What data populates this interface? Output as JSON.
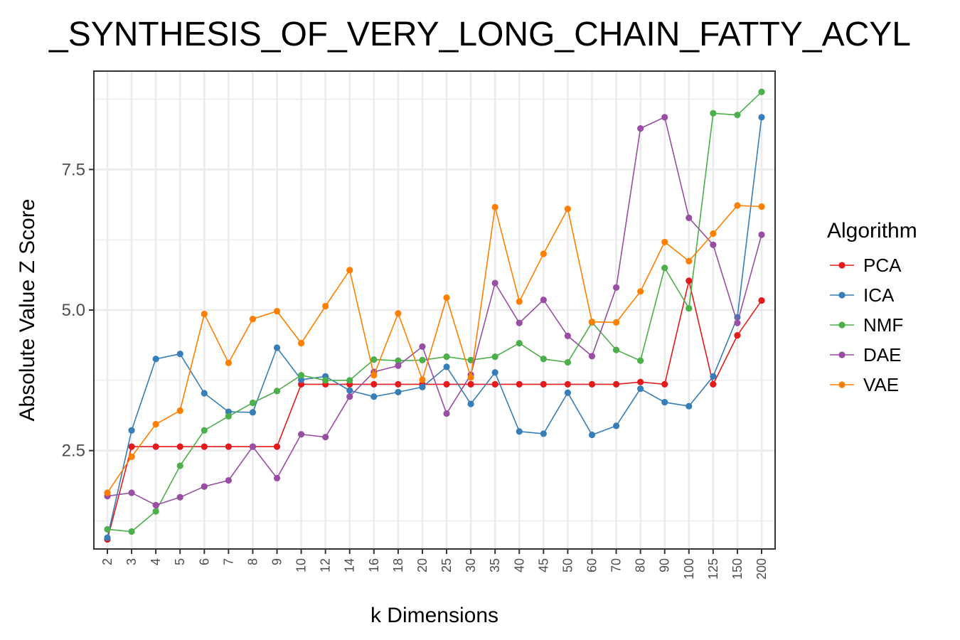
{
  "chart_data": {
    "type": "line",
    "title": "_SYNTHESIS_OF_VERY_LONG_CHAIN_FATTY_ACYL",
    "xlabel": "k Dimensions",
    "ylabel": "Absolute Value Z Score",
    "ylim": [
      0.75,
      9.25
    ],
    "yticks": [
      2.5,
      5.0,
      7.5
    ],
    "ytick_labels": [
      "2.5",
      "5.0",
      "7.5"
    ],
    "grid": true,
    "legend": {
      "title": "Algorithm",
      "position": "right"
    },
    "categories": [
      "2",
      "3",
      "4",
      "5",
      "6",
      "7",
      "8",
      "9",
      "10",
      "12",
      "14",
      "16",
      "18",
      "20",
      "25",
      "30",
      "35",
      "40",
      "45",
      "50",
      "60",
      "70",
      "80",
      "90",
      "100",
      "125",
      "150",
      "200"
    ],
    "series": [
      {
        "name": "PCA",
        "color": "#e41a1c",
        "values": [
          0.92,
          2.57,
          2.57,
          2.57,
          2.57,
          2.57,
          2.57,
          2.57,
          3.68,
          3.68,
          3.68,
          3.68,
          3.68,
          3.68,
          3.68,
          3.68,
          3.68,
          3.68,
          3.68,
          3.68,
          3.68,
          3.68,
          3.72,
          3.68,
          5.52,
          3.68,
          4.55,
          5.17
        ]
      },
      {
        "name": "ICA",
        "color": "#377eb8",
        "values": [
          0.95,
          2.86,
          4.13,
          4.22,
          3.52,
          3.19,
          3.18,
          4.33,
          3.76,
          3.82,
          3.57,
          3.46,
          3.54,
          3.63,
          3.99,
          3.33,
          3.89,
          2.84,
          2.8,
          3.53,
          2.78,
          2.94,
          3.6,
          3.36,
          3.29,
          3.82,
          4.87,
          8.43
        ]
      },
      {
        "name": "NMF",
        "color": "#4daf4a",
        "values": [
          1.1,
          1.06,
          1.42,
          2.23,
          2.86,
          3.11,
          3.35,
          3.56,
          3.84,
          3.75,
          3.75,
          4.12,
          4.1,
          4.11,
          4.17,
          4.11,
          4.17,
          4.41,
          4.13,
          4.07,
          4.78,
          4.29,
          4.1,
          5.75,
          5.03,
          8.5,
          8.47,
          8.88
        ]
      },
      {
        "name": "DAE",
        "color": "#984ea3",
        "values": [
          1.69,
          1.75,
          1.53,
          1.67,
          1.86,
          1.97,
          2.57,
          2.01,
          2.79,
          2.74,
          3.46,
          3.9,
          4.01,
          4.35,
          3.16,
          3.85,
          5.48,
          4.77,
          5.18,
          4.54,
          4.18,
          5.4,
          8.23,
          8.43,
          6.64,
          6.16,
          4.77,
          6.34
        ]
      },
      {
        "name": "VAE",
        "color": "#ff7f00",
        "values": [
          1.75,
          2.39,
          2.97,
          3.21,
          4.93,
          4.06,
          4.84,
          4.98,
          4.41,
          5.07,
          5.71,
          3.84,
          4.94,
          3.76,
          5.22,
          3.8,
          6.83,
          5.15,
          6.0,
          6.8,
          4.79,
          4.78,
          5.33,
          6.21,
          5.87,
          6.36,
          6.86,
          6.84
        ]
      }
    ]
  }
}
